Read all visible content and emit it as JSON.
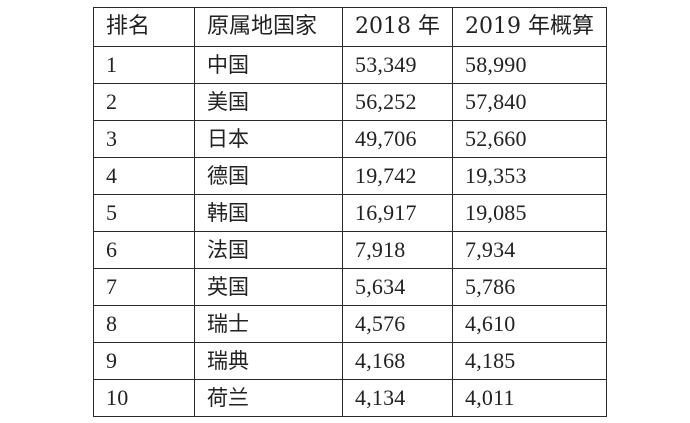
{
  "table": {
    "headers": [
      "排名",
      "原属地国家",
      "2018 年",
      "2019 年概算"
    ],
    "rows": [
      {
        "rank": "1",
        "country": "中国",
        "y2018": "53,349",
        "y2019": "58,990"
      },
      {
        "rank": "2",
        "country": "美国",
        "y2018": "56,252",
        "y2019": "57,840"
      },
      {
        "rank": "3",
        "country": "日本",
        "y2018": "49,706",
        "y2019": "52,660"
      },
      {
        "rank": "4",
        "country": "德国",
        "y2018": "19,742",
        "y2019": "19,353"
      },
      {
        "rank": "5",
        "country": "韩国",
        "y2018": "16,917",
        "y2019": "19,085"
      },
      {
        "rank": "6",
        "country": "法国",
        "y2018": "7,918",
        "y2019": "7,934"
      },
      {
        "rank": "7",
        "country": "英国",
        "y2018": "5,634",
        "y2019": "5,786"
      },
      {
        "rank": "8",
        "country": "瑞士",
        "y2018": "4,576",
        "y2019": "4,610"
      },
      {
        "rank": "9",
        "country": "瑞典",
        "y2018": "4,168",
        "y2019": "4,185"
      },
      {
        "rank": "10",
        "country": "荷兰",
        "y2018": "4,134",
        "y2019": "4,011"
      }
    ]
  },
  "chart_data": {
    "type": "table",
    "columns": [
      "排名",
      "原属地国家",
      "2018 年",
      "2019 年概算"
    ],
    "rows": [
      [
        1,
        "中国",
        53349,
        58990
      ],
      [
        2,
        "美国",
        56252,
        57840
      ],
      [
        3,
        "日本",
        49706,
        52660
      ],
      [
        4,
        "德国",
        19742,
        19353
      ],
      [
        5,
        "韩国",
        16917,
        19085
      ],
      [
        6,
        "法国",
        7918,
        7934
      ],
      [
        7,
        "英国",
        5634,
        5786
      ],
      [
        8,
        "瑞士",
        4576,
        4610
      ],
      [
        9,
        "瑞典",
        4168,
        4185
      ],
      [
        10,
        "荷兰",
        4134,
        4011
      ]
    ]
  }
}
